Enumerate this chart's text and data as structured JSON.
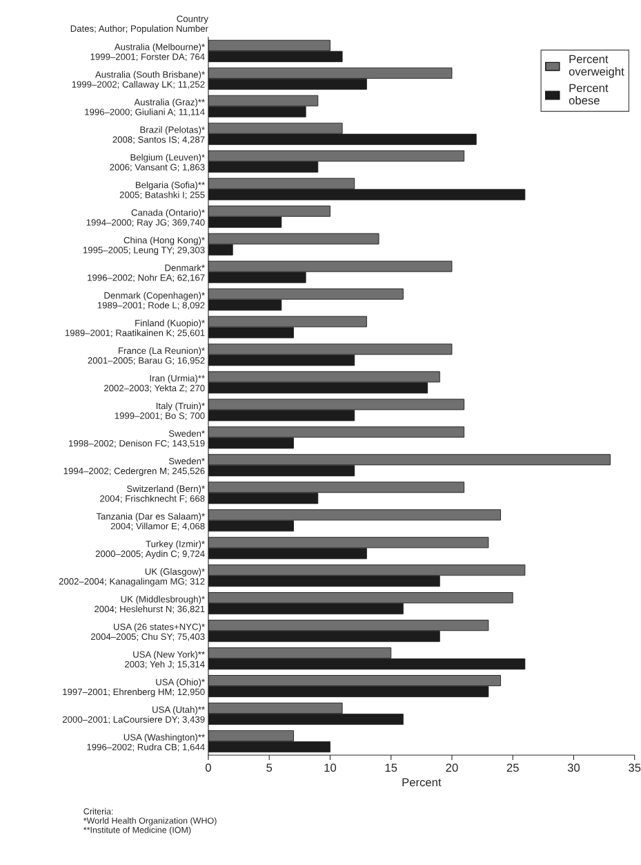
{
  "chart_data": {
    "type": "bar",
    "orientation": "horizontal",
    "ylabel": "Country\nDates; Author; Population Number",
    "xlabel": "Percent",
    "categories": [
      "Australia (Melbourne)*\n1999–2001; Forster DA; 764",
      "Australia (South Brisbane)*\n1999–2002; Callaway LK; 11,252",
      "Australia (Graz)**\n1996–2000; Giuliani A; 11,114",
      "Brazil (Pelotas)*\n2008; Santos IS; 4,287",
      "Belgium (Leuven)*\n2006; Vansant G; 1,863",
      "Belgaria (Sofia)**\n2005; Batashki I; 255",
      "Canada (Ontario)*\n1994–2000; Ray JG; 369,740",
      "China (Hong Kong)*\n1995–2005; Leung TY; 29,303",
      "Denmark*\n1996–2002; Nohr EA; 62,167",
      "Denmark (Copenhagen)*\n1989–2001; Rode L; 8,092",
      "Finland (Kuopio)*\n1989–2001; Raatikainen K; 25,601",
      "France (La Reunion)*\n2001–2005; Barau G; 16,952",
      "Iran (Urmia)**\n2002–2003; Yekta Z; 270",
      "Italy (Truin)*\n1999–2001; Bo S; 700",
      "Sweden*\n1998–2002; Denison FC; 143,519",
      "Sweden*\n1994–2002; Cedergren M; 245,526",
      "Switzerland (Bern)*\n2004; Frischknecht F; 668",
      "Tanzania (Dar es Salaam)*\n2004; Villamor E; 4,068",
      "Turkey (Izmir)*\n2000–2005; Aydin C; 9,724",
      "UK (Glasgow)*\n2002–2004; Kanagalingam MG; 312",
      "UK (Middlesbrough)*\n2004; Heslehurst N; 36,821",
      "USA (26 states+NYC)*\n2004–2005; Chu SY; 75,403",
      "USA (New York)**\n2003; Yeh J; 15,314",
      "USA (Ohio)*\n1997–2001; Ehrenberg HM; 12,950",
      "USA (Utah)**\n2000–2001; LaCoursiere DY; 3,439",
      "USA (Washington)**\n1996–2002; Rudra CB; 1,644"
    ],
    "series": [
      {
        "name": "Percent overweight",
        "color": "#707070",
        "values": [
          10,
          20,
          9,
          11,
          21,
          12,
          10,
          14,
          20,
          16,
          13,
          20,
          19,
          21,
          21,
          33,
          21,
          24,
          23,
          26,
          25,
          23,
          15,
          24,
          11,
          7
        ]
      },
      {
        "name": "Percent obese",
        "color": "#1c1c1c",
        "values": [
          11,
          13,
          8,
          22,
          9,
          26,
          6,
          2,
          8,
          6,
          7,
          12,
          18,
          12,
          7,
          12,
          9,
          7,
          13,
          19,
          16,
          19,
          26,
          23,
          16,
          10
        ]
      }
    ],
    "xlim": [
      0,
      35
    ],
    "xticks": [
      0,
      5,
      10,
      15,
      20,
      25,
      30,
      35
    ],
    "legend": "top right",
    "grid": false,
    "annotations": [
      "Criteria:\n*World Health Organization (WHO)\n**Institute of Medicine (IOM)"
    ]
  }
}
